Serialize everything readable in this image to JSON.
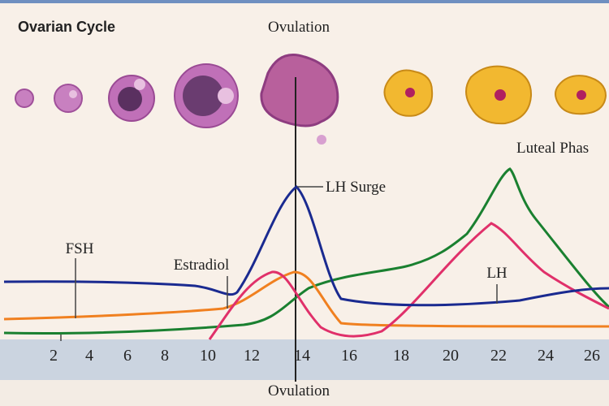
{
  "header": {
    "title": "Ovarian Cycle",
    "ovulation_top": "Ovulation",
    "luteal": "Luteal Phas"
  },
  "labels": {
    "lh_surge": "LH Surge",
    "fsh": "FSH",
    "estradiol": "Estradiol",
    "lh": "LH"
  },
  "axis": {
    "days": [
      "2",
      "4",
      "6",
      "8",
      "10",
      "12",
      "14",
      "16",
      "18",
      "20",
      "22",
      "24",
      "26"
    ],
    "ovulation_bottom": "Ovulation"
  }
}
